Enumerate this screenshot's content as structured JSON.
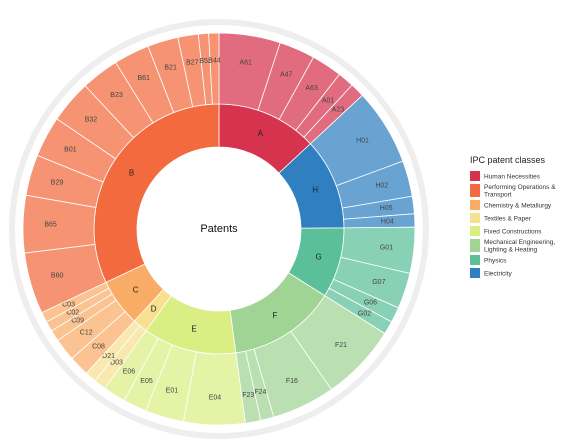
{
  "chart_data": {
    "type": "sunburst",
    "center_label": "Patents",
    "legend": {
      "title": "IPC patent classes",
      "position": "right"
    },
    "sections": [
      {
        "code": "A",
        "name": "Human Necessities",
        "color": "#d6334e",
        "subclasses": [
          {
            "code": "A61",
            "value": 6.0
          },
          {
            "code": "A47",
            "value": 3.5
          },
          {
            "code": "A63",
            "value": 3.0
          },
          {
            "code": "A01",
            "value": 1.6
          },
          {
            "code": "A23",
            "value": 1.4
          }
        ]
      },
      {
        "code": "H",
        "name": "Electricity",
        "color": "#2f7fc1",
        "subclasses": [
          {
            "code": "H01",
            "value": 7.5
          },
          {
            "code": "H02",
            "value": 3.5
          },
          {
            "code": "H05",
            "value": 1.7
          },
          {
            "code": "H04",
            "value": 1.3
          }
        ]
      },
      {
        "code": "G",
        "name": "Physics",
        "color": "#5bbf9a",
        "subclasses": [
          {
            "code": "G01",
            "value": 4.5
          },
          {
            "code": "G07",
            "value": 3.5
          },
          {
            "code": "G06",
            "value": 1.5
          },
          {
            "code": "G02",
            "value": 1.3
          }
        ]
      },
      {
        "code": "F",
        "name": "Mechanical Engineering, Lighting & Heating",
        "color": "#9fd494",
        "subclasses": [
          {
            "code": "F21",
            "value": 7.5
          },
          {
            "code": "F16",
            "value": 6.2
          },
          {
            "code": "F24",
            "value": 1.3
          },
          {
            "code": "F23",
            "value": 1.5
          }
        ]
      },
      {
        "code": "E",
        "name": "Fixed Constructions",
        "color": "#dbee84",
        "subclasses": [
          {
            "code": "E04",
            "value": 6.0
          },
          {
            "code": "E01",
            "value": 3.8
          },
          {
            "code": "E05",
            "value": 2.3
          },
          {
            "code": "E06",
            "value": 2.2
          }
        ]
      },
      {
        "code": "D",
        "name": "Textiles & Paper",
        "color": "#f7e08f",
        "subclasses": [
          {
            "code": "D03",
            "value": 1.2
          },
          {
            "code": "D21",
            "value": 1.1
          }
        ]
      },
      {
        "code": "C",
        "name": "Chemistry & Metallurgy",
        "color": "#f9ac66",
        "subclasses": [
          {
            "code": "C08",
            "value": 2.0
          },
          {
            "code": "C12",
            "value": 2.2
          },
          {
            "code": "C09",
            "value": 1.1
          },
          {
            "code": "C02",
            "value": 1.0
          },
          {
            "code": "C03",
            "value": 1.0
          }
        ]
      },
      {
        "code": "B",
        "name": "Performing Operations & Transport",
        "color": "#f26a3d",
        "subclasses": [
          {
            "code": "B60",
            "value": 6.0
          },
          {
            "code": "B65",
            "value": 5.6
          },
          {
            "code": "B29",
            "value": 4.0
          },
          {
            "code": "B01",
            "value": 4.0
          },
          {
            "code": "B32",
            "value": 4.2
          },
          {
            "code": "B23",
            "value": 3.7
          },
          {
            "code": "B61",
            "value": 3.5
          },
          {
            "code": "B21",
            "value": 3.0
          },
          {
            "code": "B27",
            "value": 2.0
          },
          {
            "code": "B52",
            "value": 1.0
          },
          {
            "code": "B44",
            "value": 1.0
          }
        ]
      }
    ],
    "legend_order": [
      "A",
      "B",
      "C",
      "D",
      "E",
      "F",
      "G",
      "H"
    ]
  }
}
